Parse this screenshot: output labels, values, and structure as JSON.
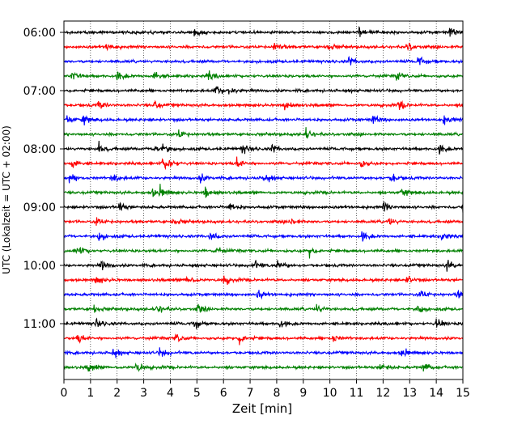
{
  "chart_data": {
    "type": "line",
    "title": "",
    "xlabel": "Zeit  [min]",
    "ylabel": "UTC (Lokalzeit = UTC + 02:00)",
    "xlim": [
      0,
      15
    ],
    "x_ticks": [
      "0",
      "1",
      "2",
      "3",
      "4",
      "5",
      "6",
      "7",
      "8",
      "9",
      "10",
      "11",
      "12",
      "13",
      "14",
      "15"
    ],
    "y_tick_labels": [
      "06:00",
      "07:00",
      "08:00",
      "09:00",
      "10:00",
      "11:00"
    ],
    "grid": "vertical dotted lines at each minute",
    "row_interval_min": 15,
    "first_row_time": "06:00",
    "row_count": 24,
    "color_cycle": [
      "#000000",
      "#ff0000",
      "#0000ff",
      "#008000"
    ],
    "series": [
      {
        "row_time": "06:00",
        "color": "#000000",
        "events_min": [
          4.9,
          11.1,
          14.5
        ]
      },
      {
        "row_time": "06:15",
        "color": "#ff0000",
        "events_min": [
          1.6,
          7.9,
          9.9,
          12.9
        ]
      },
      {
        "row_time": "06:30",
        "color": "#0000ff",
        "events_min": [
          10.7,
          13.3
        ]
      },
      {
        "row_time": "06:45",
        "color": "#008000",
        "events_min": [
          0.3,
          2.0,
          3.4,
          5.4,
          12.5
        ]
      },
      {
        "row_time": "07:00",
        "color": "#000000",
        "events_min": [
          5.7,
          6.2
        ]
      },
      {
        "row_time": "07:15",
        "color": "#ff0000",
        "events_min": [
          1.3,
          3.4,
          8.3,
          12.6
        ]
      },
      {
        "row_time": "07:30",
        "color": "#0000ff",
        "events_min": [
          0.1,
          0.7,
          11.6,
          14.3
        ]
      },
      {
        "row_time": "07:45",
        "color": "#008000",
        "events_min": [
          4.3,
          9.1
        ]
      },
      {
        "row_time": "08:00",
        "color": "#000000",
        "events_min": [
          1.3,
          3.4,
          3.7,
          6.7,
          7.8,
          14.1
        ]
      },
      {
        "row_time": "08:15",
        "color": "#ff0000",
        "events_min": [
          0.3,
          3.7,
          3.9,
          6.5,
          11.1
        ]
      },
      {
        "row_time": "08:30",
        "color": "#0000ff",
        "events_min": [
          0.2,
          1.8,
          5.1,
          7.5,
          12.3
        ]
      },
      {
        "row_time": "08:45",
        "color": "#008000",
        "events_min": [
          3.3,
          3.6,
          5.3,
          12.7
        ]
      },
      {
        "row_time": "09:00",
        "color": "#000000",
        "events_min": [
          2.1,
          6.2,
          12.0,
          15.0
        ]
      },
      {
        "row_time": "09:15",
        "color": "#ff0000",
        "events_min": [
          1.2,
          4.1,
          8.5,
          12.2
        ]
      },
      {
        "row_time": "09:30",
        "color": "#0000ff",
        "events_min": [
          1.3,
          5.5,
          11.2,
          14.2
        ]
      },
      {
        "row_time": "09:45",
        "color": "#008000",
        "events_min": [
          0.5,
          5.7,
          9.2
        ]
      },
      {
        "row_time": "10:00",
        "color": "#000000",
        "events_min": [
          1.4,
          7.1,
          8.0,
          14.4
        ]
      },
      {
        "row_time": "10:15",
        "color": "#ff0000",
        "events_min": [
          1.2,
          4.6,
          6.0,
          12.9
        ]
      },
      {
        "row_time": "10:30",
        "color": "#0000ff",
        "events_min": [
          7.3,
          13.4,
          14.8
        ]
      },
      {
        "row_time": "10:45",
        "color": "#008000",
        "events_min": [
          1.1,
          3.5,
          5.0,
          9.5,
          13.3
        ]
      },
      {
        "row_time": "11:00",
        "color": "#000000",
        "events_min": [
          1.2,
          4.9,
          8.1,
          14.0
        ]
      },
      {
        "row_time": "11:15",
        "color": "#ff0000",
        "events_min": [
          0.5,
          4.2,
          6.6,
          10.1
        ]
      },
      {
        "row_time": "11:30",
        "color": "#0000ff",
        "events_min": [
          1.8,
          3.6,
          12.7
        ]
      },
      {
        "row_time": "11:45",
        "color": "#008000",
        "events_min": [
          0.9,
          2.7,
          11.9,
          13.5
        ]
      }
    ]
  }
}
